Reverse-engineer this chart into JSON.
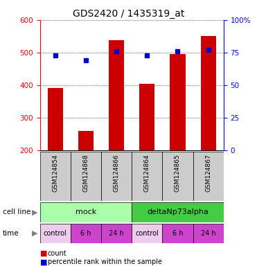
{
  "title": "GDS2420 / 1435319_at",
  "samples": [
    "GSM124854",
    "GSM124868",
    "GSM124866",
    "GSM124864",
    "GSM124865",
    "GSM124867"
  ],
  "bar_values": [
    392,
    260,
    538,
    405,
    495,
    550
  ],
  "percentile_values": [
    73,
    69,
    76,
    73,
    76,
    77
  ],
  "bar_color": "#cc0000",
  "dot_color": "#0000cc",
  "ylim_left": [
    200,
    600
  ],
  "ylim_right": [
    0,
    100
  ],
  "yticks_left": [
    200,
    300,
    400,
    500,
    600
  ],
  "yticks_right": [
    0,
    25,
    50,
    75,
    100
  ],
  "yticklabels_right": [
    "0",
    "25",
    "50",
    "75",
    "100%"
  ],
  "cell_line_groups": [
    {
      "label": "mock",
      "color": "#aaffaa",
      "start": 0,
      "end": 3
    },
    {
      "label": "deltaNp73alpha",
      "color": "#44cc44",
      "start": 3,
      "end": 6
    }
  ],
  "time_colors": [
    "#eeccee",
    "#cc44cc",
    "#cc44cc",
    "#eeccee",
    "#cc44cc",
    "#cc44cc"
  ],
  "time_labels": [
    "control",
    "6 h",
    "24 h",
    "control",
    "6 h",
    "24 h"
  ],
  "legend_count_color": "#cc0000",
  "legend_dot_color": "#0000cc",
  "sample_bg_color": "#cccccc",
  "bar_width": 0.5,
  "background_color": "#ffffff"
}
